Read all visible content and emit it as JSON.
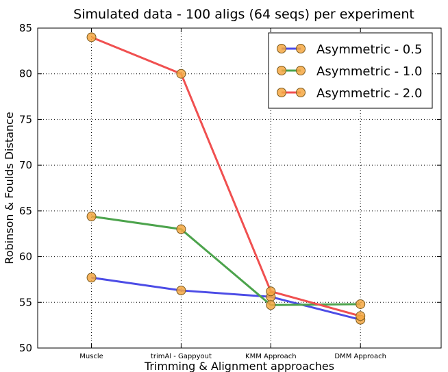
{
  "chart_data": {
    "type": "line",
    "title": "Simulated data - 100 aligs (64 seqs) per experiment",
    "xlabel": "Trimming & Alignment approaches",
    "ylabel": "Robinson & Foulds Distance",
    "categories": [
      "Muscle",
      "trimAl - Gappyout",
      "KMM Approach",
      "DMM Approach"
    ],
    "ylim": [
      50,
      85
    ],
    "yticks": [
      50,
      55,
      60,
      65,
      70,
      75,
      80,
      85
    ],
    "grid": true,
    "legend_position": "top-right",
    "marker_color": "#f5a742",
    "series": [
      {
        "name": "Asymmetric - 0.5",
        "color": "#4c4ce6",
        "values": [
          57.7,
          56.3,
          55.6,
          53.1
        ]
      },
      {
        "name": "Asymmetric - 1.0",
        "color": "#4ca34c",
        "values": [
          64.4,
          63.0,
          54.7,
          54.8
        ]
      },
      {
        "name": "Asymmetric - 2.0",
        "color": "#f05050",
        "values": [
          84.0,
          80.0,
          56.2,
          53.5
        ]
      }
    ]
  }
}
